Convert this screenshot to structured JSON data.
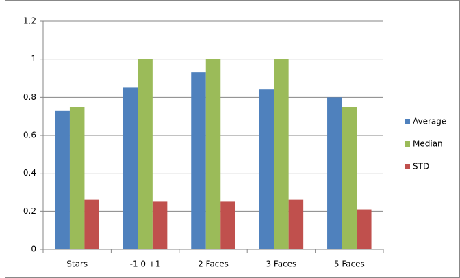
{
  "chart_data": {
    "type": "bar",
    "categories": [
      "Stars",
      "-1 0 +1",
      "2 Faces",
      "3 Faces",
      "5 Faces"
    ],
    "series": [
      {
        "name": "Average",
        "color": "#4f81bd",
        "values": [
          0.73,
          0.85,
          0.93,
          0.84,
          0.8
        ]
      },
      {
        "name": "Median",
        "color": "#9bbb59",
        "values": [
          0.75,
          1,
          1,
          1,
          0.75
        ]
      },
      {
        "name": "STD",
        "color": "#c0504d",
        "values": [
          0.26,
          0.25,
          0.25,
          0.26,
          0.21
        ]
      }
    ],
    "ylim": [
      0,
      1.2
    ],
    "yticks": [
      0,
      0.2,
      0.4,
      0.6,
      0.8,
      1,
      1.2
    ],
    "grid": true,
    "legend": "right"
  }
}
